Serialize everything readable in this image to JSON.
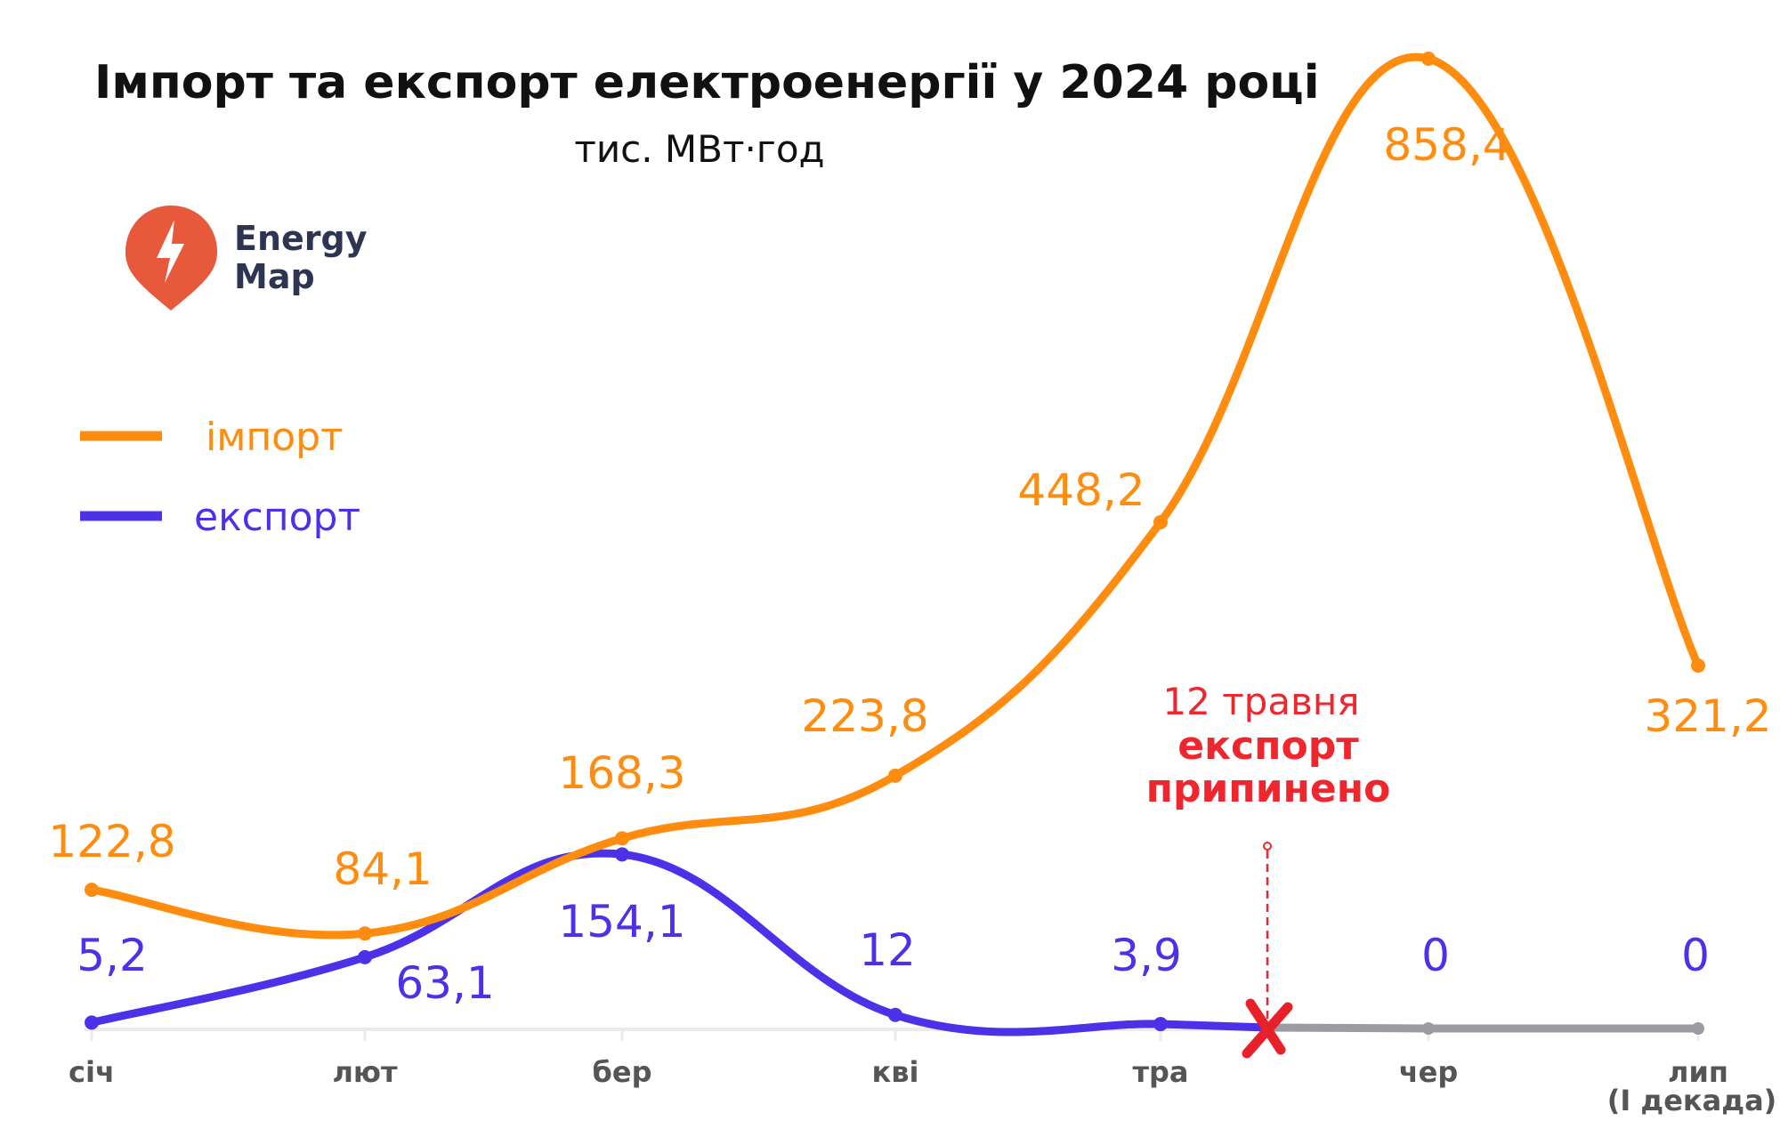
{
  "chart_data": {
    "type": "line",
    "title": "Імпорт та експорт електроенергії у 2024 році",
    "subtitle": "тис. МВт·год",
    "categories": [
      "січ",
      "лют",
      "бер",
      "кві",
      "тра",
      "чер",
      "лип"
    ],
    "category_note": "(І декада)",
    "series": [
      {
        "name": "імпорт",
        "color": "#ff8c0f",
        "values": [
          122.8,
          84.1,
          168.3,
          223.8,
          448.2,
          858.4,
          321.2
        ],
        "labels": [
          "122,8",
          "84,1",
          "168,3",
          "223,8",
          "448,2",
          "858,4",
          "321,2"
        ]
      },
      {
        "name": "експорт",
        "color": "#4b32e8",
        "values": [
          5.2,
          63.1,
          154.1,
          12,
          3.9,
          0,
          0
        ],
        "labels": [
          "5,2",
          "63,1",
          "154,1",
          "12",
          "3,9",
          "0",
          "0"
        ]
      }
    ],
    "stopped_color": "#9b9ba3",
    "annotation": {
      "date": "12 травня",
      "line1": "експорт",
      "line2": "припинено",
      "color": "#f0262f"
    },
    "ylim": [
      0,
      858.4
    ],
    "grid": false,
    "legend": "left"
  },
  "logo": {
    "line1": "Energy",
    "line2": "Map",
    "color": "#e8583a"
  }
}
